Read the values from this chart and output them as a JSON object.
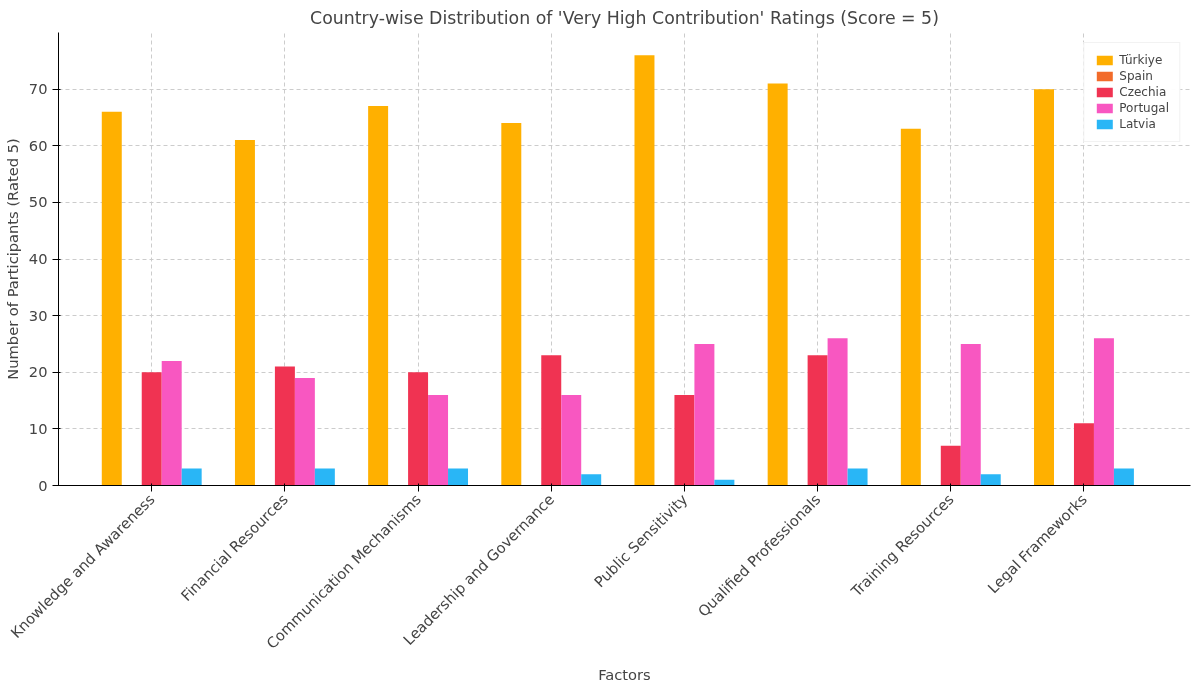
{
  "chart_data": {
    "type": "bar",
    "title": "Country-wise Distribution of 'Very High Contribution' Ratings (Score = 5)",
    "xlabel": "Factors",
    "ylabel": "Number of Participants (Rated 5)",
    "categories": [
      "Knowledge and Awareness",
      "Financial Resources",
      "Communication Mechanisms",
      "Leadership and Governance",
      "Public Sensitivity",
      "Qualified Professionals",
      "Training Resources",
      "Legal Frameworks"
    ],
    "series": [
      {
        "name": "Türkiye",
        "color": "#ffb000",
        "values": [
          66,
          61,
          67,
          64,
          76,
          71,
          63,
          70
        ]
      },
      {
        "name": "Spain",
        "color": "#f26b2a",
        "values": [
          0,
          0,
          0,
          0,
          0,
          0,
          0,
          0
        ]
      },
      {
        "name": "Czechia",
        "color": "#f03352",
        "values": [
          20,
          21,
          20,
          23,
          16,
          23,
          7,
          11
        ]
      },
      {
        "name": "Portugal",
        "color": "#f857c1",
        "values": [
          22,
          19,
          16,
          16,
          25,
          26,
          25,
          26
        ]
      },
      {
        "name": "Latvia",
        "color": "#29b6f6",
        "values": [
          3,
          3,
          3,
          2,
          1,
          3,
          2,
          3
        ]
      }
    ],
    "ylim": [
      0,
      80
    ],
    "yticks": [
      0,
      10,
      20,
      30,
      40,
      50,
      60,
      70
    ],
    "grid": true,
    "legend": "top right"
  }
}
